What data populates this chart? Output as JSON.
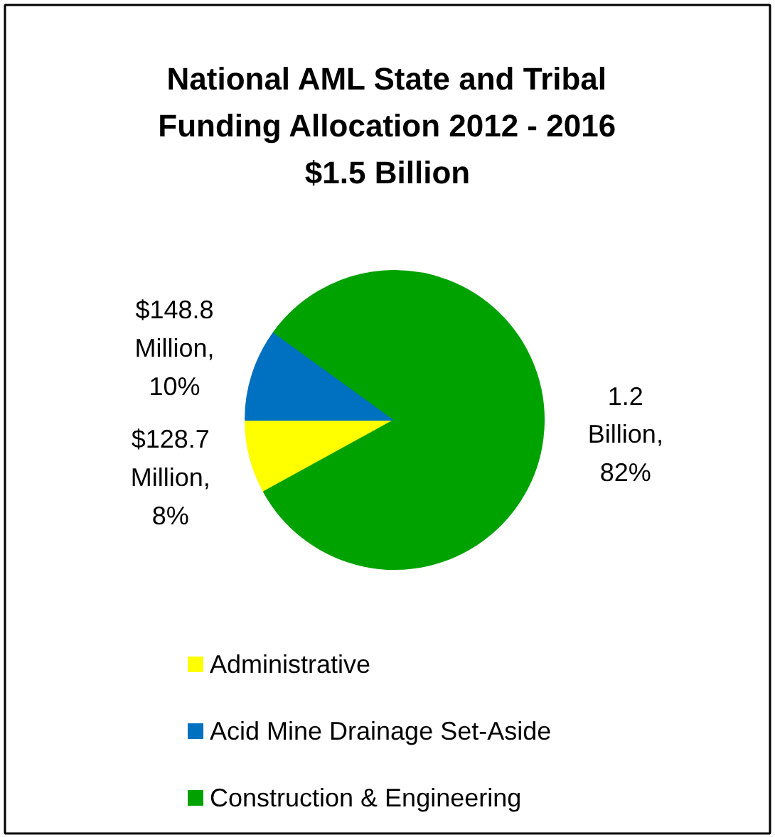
{
  "chart_data": {
    "type": "pie",
    "title": "National AML State and Tribal Funding Allocation 2012 - 2016",
    "subtitle": "$1.5 Billion",
    "categories": [
      "Administrative",
      "Acid Mine Drainage Set-Aside",
      "Construction & Engineering"
    ],
    "values": [
      8,
      10,
      82
    ],
    "colors": [
      "#ffff00",
      "#0070c0",
      "#00a200"
    ],
    "value_labels": [
      "$128.7 Million, 8%",
      "$148.8 Million, 10%",
      "1.2 Billion, 82%"
    ],
    "legend": "bottom"
  }
}
